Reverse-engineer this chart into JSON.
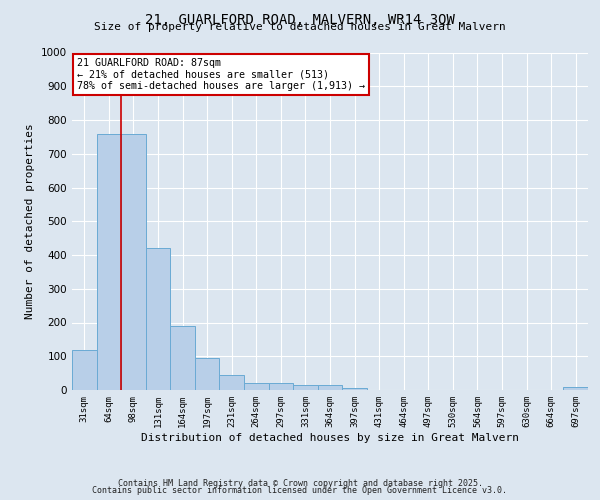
{
  "title_line1": "21, GUARLFORD ROAD, MALVERN, WR14 3QW",
  "title_line2": "Size of property relative to detached houses in Great Malvern",
  "xlabel": "Distribution of detached houses by size in Great Malvern",
  "ylabel": "Number of detached properties",
  "categories": [
    "31sqm",
    "64sqm",
    "98sqm",
    "131sqm",
    "164sqm",
    "197sqm",
    "231sqm",
    "264sqm",
    "297sqm",
    "331sqm",
    "364sqm",
    "397sqm",
    "431sqm",
    "464sqm",
    "497sqm",
    "530sqm",
    "564sqm",
    "597sqm",
    "630sqm",
    "664sqm",
    "697sqm"
  ],
  "values": [
    120,
    760,
    760,
    420,
    190,
    95,
    45,
    20,
    20,
    15,
    15,
    5,
    0,
    0,
    0,
    0,
    0,
    0,
    0,
    0,
    8
  ],
  "bar_color": "#b8cfe8",
  "bar_edge_color": "#6aaad4",
  "background_color": "#dce6f0",
  "grid_color": "#ffffff",
  "vline_x": 1.5,
  "vline_color": "#cc0000",
  "annotation_text": "21 GUARLFORD ROAD: 87sqm\n← 21% of detached houses are smaller (513)\n78% of semi-detached houses are larger (1,913) →",
  "annotation_box_color": "#ffffff",
  "annotation_box_edge_color": "#cc0000",
  "ylim": [
    0,
    1000
  ],
  "yticks": [
    0,
    100,
    200,
    300,
    400,
    500,
    600,
    700,
    800,
    900,
    1000
  ],
  "footer1": "Contains HM Land Registry data © Crown copyright and database right 2025.",
  "footer2": "Contains public sector information licensed under the Open Government Licence v3.0."
}
